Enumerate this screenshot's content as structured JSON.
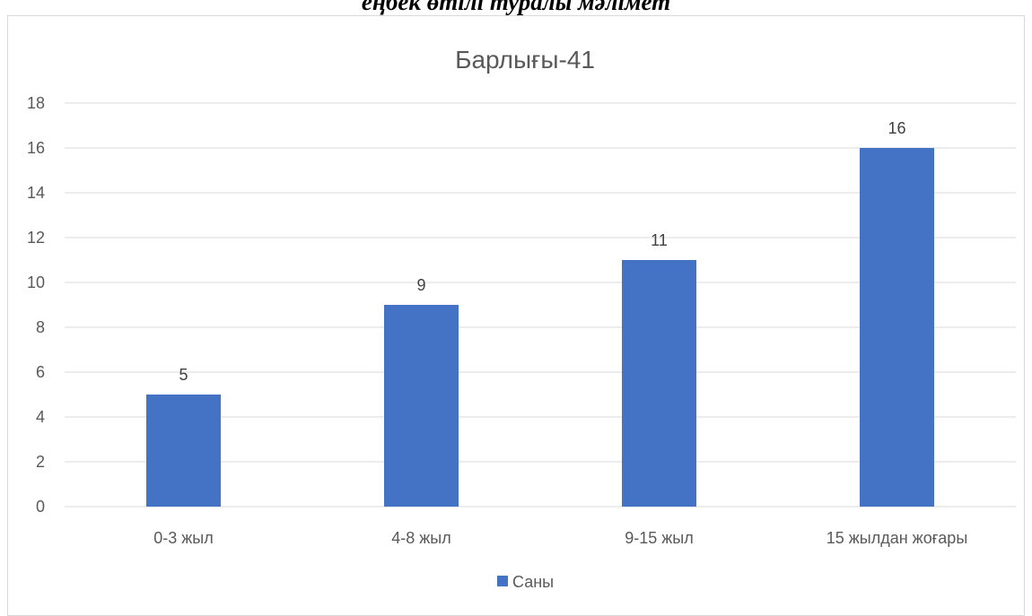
{
  "document": {
    "heading": "еңбек өтілі туралы мәлімет"
  },
  "chart_data": {
    "type": "bar",
    "title": "Барлығы-41",
    "categories": [
      "0-3 жыл",
      "4-8 жыл",
      "9-15 жыл",
      "15 жылдан жоғары"
    ],
    "series": [
      {
        "name": "Саны",
        "values": [
          5,
          9,
          11,
          16
        ],
        "color": "#4472c4"
      }
    ],
    "ylim": [
      0,
      18
    ],
    "yticks": [
      0,
      2,
      4,
      6,
      8,
      10,
      12,
      14,
      16,
      18
    ],
    "xlabel": "",
    "ylabel": "",
    "grid": true,
    "data_labels": true,
    "legend_position": "bottom"
  }
}
